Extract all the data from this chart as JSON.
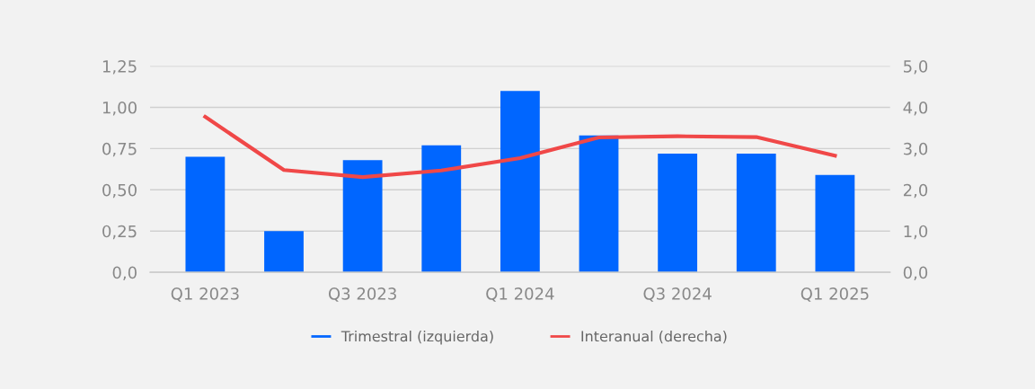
{
  "chart_data": {
    "type": "bar",
    "categories": [
      "Q1 2023",
      null,
      "Q3 2023",
      null,
      "Q1 2024",
      null,
      "Q3 2024",
      null,
      "Q1 2025"
    ],
    "series": [
      {
        "name": "Trimestral (izquierda)",
        "color": "#0066ff",
        "values": [
          0.7,
          0.25,
          0.68,
          0.77,
          1.1,
          0.83,
          0.72,
          0.72,
          0.59
        ]
      },
      {
        "name": "Interanual (derecha)",
        "type": "line",
        "axis": "y2",
        "color": "#f04848",
        "values": [
          3.77,
          2.48,
          2.31,
          2.47,
          2.77,
          3.27,
          3.3,
          3.28,
          2.83
        ]
      }
    ],
    "ylim": [
      0,
      1.25
    ],
    "yticks": [
      {
        "value": 0,
        "label": "0,0"
      },
      {
        "value": 0.25,
        "label": "0,25"
      },
      {
        "value": 0.5,
        "label": "0,50"
      },
      {
        "value": 0.75,
        "label": "0,75"
      },
      {
        "value": 1.0,
        "label": "1,00"
      },
      {
        "value": 1.25,
        "label": "1,25"
      }
    ],
    "y2lim": [
      0,
      5
    ],
    "y2ticks": [
      {
        "value": 0,
        "label": "0,0"
      },
      {
        "value": 1,
        "label": "1,0"
      },
      {
        "value": 2,
        "label": "2,0"
      },
      {
        "value": 3,
        "label": "3,0"
      },
      {
        "value": 4,
        "label": "4,0"
      },
      {
        "value": 5,
        "label": "5,0"
      }
    ],
    "grid": "y",
    "legend": "bottom"
  }
}
